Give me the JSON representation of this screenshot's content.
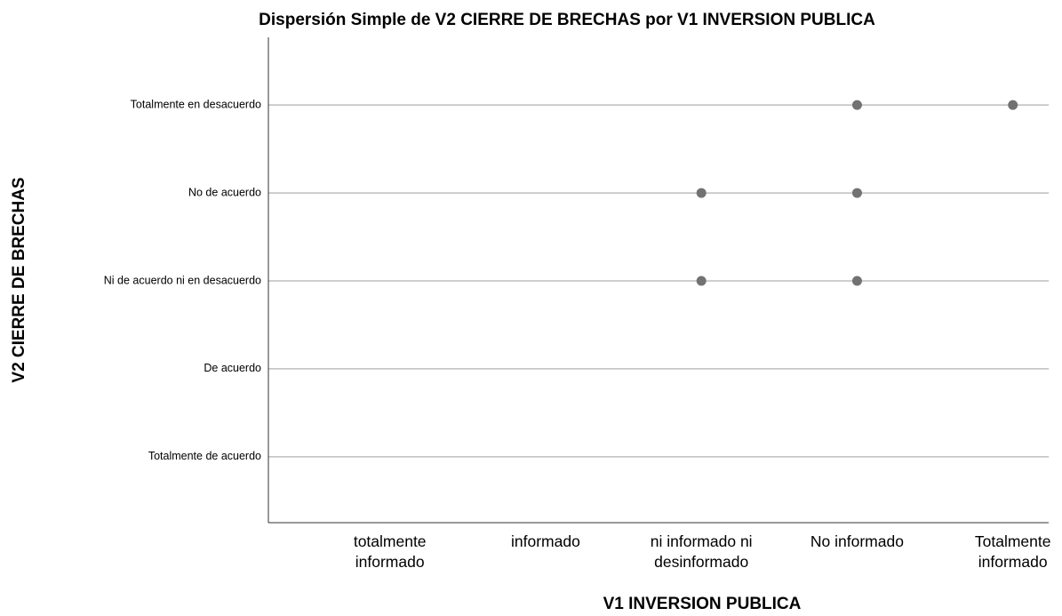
{
  "chart_data": {
    "type": "scatter",
    "title": "Dispersión Simple de V2 CIERRE DE BRECHAS por V1 INVERSION PUBLICA",
    "x_label": "V1 INVERSION PUBLICA",
    "y_label": "V2 CIERRE DE BRECHAS",
    "x": [
      4,
      5,
      3,
      4,
      3,
      4
    ],
    "values": [
      5,
      5,
      4,
      4,
      3,
      3
    ],
    "color": "#727272",
    "xlim": [
      0.22,
      5.23
    ],
    "ylim": [
      0.25,
      5.77
    ],
    "xticks": [
      {
        "value": 1,
        "label": "totalmente\ninformado"
      },
      {
        "value": 2,
        "label": "informado"
      },
      {
        "value": 3,
        "label": "ni informado ni\ndesinformado"
      },
      {
        "value": 4,
        "label": "No informado"
      },
      {
        "value": 5,
        "label": "Totalmente\ninformado"
      }
    ],
    "yticks": [
      {
        "value": 1,
        "label": "Totalmente de acuerdo"
      },
      {
        "value": 2,
        "label": "De acuerdo"
      },
      {
        "value": 3,
        "label": "Ni de acuerdo ni en desacuerdo"
      },
      {
        "value": 4,
        "label": "No de acuerdo"
      },
      {
        "value": 5,
        "label": "Totalmente en desacuerdo"
      }
    ],
    "grid": true
  }
}
